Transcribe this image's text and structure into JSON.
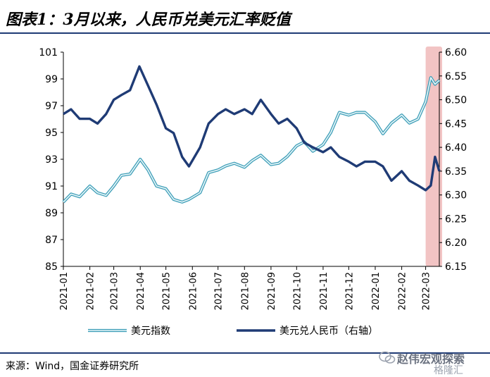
{
  "header": {
    "title": "图表1：3月以来，人民币兑美元汇率贬值"
  },
  "chart_data": {
    "type": "line",
    "left_axis": {
      "ylim": [
        85,
        101
      ],
      "ticks": [
        85,
        87,
        89,
        91,
        93,
        95,
        97,
        99,
        101
      ]
    },
    "right_axis": {
      "ylim": [
        6.15,
        6.6
      ],
      "ticks": [
        6.15,
        6.2,
        6.25,
        6.3,
        6.35,
        6.4,
        6.45,
        6.5,
        6.55,
        6.6
      ]
    },
    "x_tick_labels": [
      "2021-01",
      "2021-02",
      "2021-03",
      "2021-04",
      "2021-05",
      "2021-06",
      "2021-07",
      "2021-08",
      "2021-09",
      "2021-10",
      "2021-11",
      "2021-12",
      "2022-01",
      "2022-02",
      "2022-03"
    ],
    "highlight": {
      "from": "2022-03-01",
      "to": "2022-03-17",
      "color": "#f2c4c4"
    },
    "series": [
      {
        "name": "美元指数",
        "axis": "left",
        "color": "#7cc4d6",
        "x": [
          "2021-01-01",
          "2021-01-10",
          "2021-01-20",
          "2021-02-01",
          "2021-02-10",
          "2021-02-20",
          "2021-03-01",
          "2021-03-10",
          "2021-03-20",
          "2021-04-01",
          "2021-04-10",
          "2021-04-20",
          "2021-05-01",
          "2021-05-10",
          "2021-05-20",
          "2021-05-28",
          "2021-06-10",
          "2021-06-20",
          "2021-07-01",
          "2021-07-10",
          "2021-07-20",
          "2021-08-01",
          "2021-08-10",
          "2021-08-20",
          "2021-09-01",
          "2021-09-10",
          "2021-09-20",
          "2021-10-01",
          "2021-10-10",
          "2021-10-20",
          "2021-11-01",
          "2021-11-10",
          "2021-11-20",
          "2021-12-01",
          "2021-12-10",
          "2021-12-20",
          "2022-01-01",
          "2022-01-10",
          "2022-01-20",
          "2022-02-01",
          "2022-02-10",
          "2022-02-20",
          "2022-03-01",
          "2022-03-07",
          "2022-03-12",
          "2022-03-17"
        ],
        "values": [
          89.8,
          90.4,
          90.2,
          91.0,
          90.5,
          90.3,
          91.0,
          91.8,
          91.9,
          93.0,
          92.2,
          91.0,
          90.8,
          90.0,
          89.8,
          90.0,
          90.5,
          92.0,
          92.2,
          92.5,
          92.7,
          92.4,
          92.9,
          93.3,
          92.6,
          92.7,
          93.2,
          94.0,
          94.3,
          93.6,
          94.1,
          95.0,
          96.5,
          96.3,
          96.5,
          96.5,
          95.8,
          94.9,
          95.7,
          96.3,
          95.7,
          96.0,
          97.3,
          99.1,
          98.6,
          98.9
        ]
      },
      {
        "name": "美元兑人民币（右轴）",
        "axis": "right",
        "color": "#1f3b75",
        "x": [
          "2021-01-01",
          "2021-01-10",
          "2021-01-20",
          "2021-02-01",
          "2021-02-10",
          "2021-02-20",
          "2021-03-01",
          "2021-03-10",
          "2021-03-20",
          "2021-03-31",
          "2021-04-10",
          "2021-04-20",
          "2021-05-01",
          "2021-05-10",
          "2021-05-20",
          "2021-05-28",
          "2021-06-10",
          "2021-06-20",
          "2021-07-01",
          "2021-07-10",
          "2021-07-20",
          "2021-08-01",
          "2021-08-10",
          "2021-08-20",
          "2021-09-01",
          "2021-09-10",
          "2021-09-20",
          "2021-10-01",
          "2021-10-10",
          "2021-10-20",
          "2021-11-01",
          "2021-11-10",
          "2021-11-20",
          "2021-12-01",
          "2021-12-10",
          "2021-12-20",
          "2022-01-01",
          "2022-01-10",
          "2022-01-20",
          "2022-02-01",
          "2022-02-10",
          "2022-02-20",
          "2022-03-01",
          "2022-03-07",
          "2022-03-12",
          "2022-03-17"
        ],
        "values": [
          6.47,
          6.48,
          6.46,
          6.46,
          6.45,
          6.47,
          6.5,
          6.51,
          6.52,
          6.57,
          6.53,
          6.49,
          6.44,
          6.43,
          6.38,
          6.36,
          6.4,
          6.45,
          6.47,
          6.48,
          6.47,
          6.48,
          6.47,
          6.5,
          6.47,
          6.45,
          6.46,
          6.44,
          6.41,
          6.4,
          6.39,
          6.4,
          6.38,
          6.37,
          6.36,
          6.37,
          6.37,
          6.36,
          6.33,
          6.35,
          6.33,
          6.32,
          6.31,
          6.32,
          6.38,
          6.35
        ]
      }
    ]
  },
  "source": {
    "text": "来源：Wind，国金证券研究所"
  },
  "watermark": {
    "text": "赵伟宏观探索",
    "sub": "格隆汇",
    "icon": "wechat-icon"
  }
}
